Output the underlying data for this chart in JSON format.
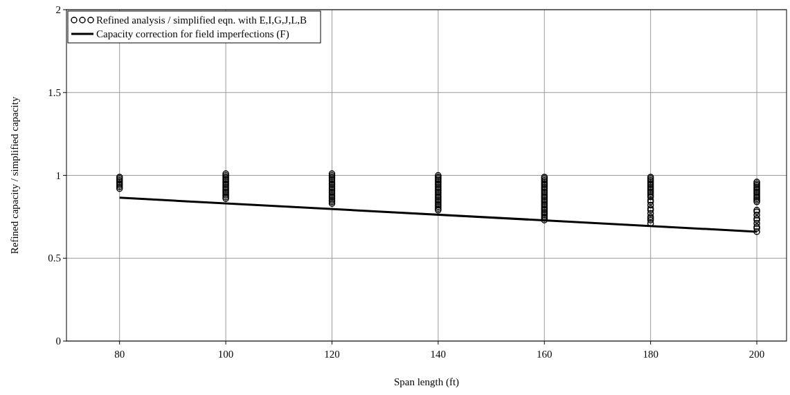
{
  "chart_data": {
    "type": "scatter",
    "xlabel": "Span length (ft)",
    "ylabel": "Refined capacity / simplified capacity",
    "xlim": [
      70,
      205.6
    ],
    "ylim": [
      0,
      2
    ],
    "xticks": [
      80,
      100,
      120,
      140,
      160,
      180,
      200
    ],
    "yticks": [
      0,
      0.5,
      1,
      1.5,
      2
    ],
    "grid": true,
    "legend": "top left",
    "marker": "circle",
    "series": [
      {
        "name": "Refined analysis / simplified eqn. with E,I,G,J,L,B",
        "color": "#000000",
        "x": [
          80,
          80,
          80,
          80,
          80,
          80,
          80,
          80,
          100,
          100,
          100,
          100,
          100,
          100,
          100,
          100,
          100,
          100,
          100,
          100,
          100,
          100,
          100,
          100,
          120,
          120,
          120,
          120,
          120,
          120,
          120,
          120,
          120,
          120,
          120,
          120,
          120,
          120,
          120,
          120,
          120,
          120,
          120,
          140,
          140,
          140,
          140,
          140,
          140,
          140,
          140,
          140,
          140,
          140,
          140,
          140,
          140,
          140,
          140,
          140,
          140,
          140,
          140,
          140,
          140,
          160,
          160,
          160,
          160,
          160,
          160,
          160,
          160,
          160,
          160,
          160,
          160,
          160,
          160,
          160,
          160,
          160,
          160,
          160,
          160,
          160,
          160,
          160,
          160,
          160,
          160,
          160,
          180,
          180,
          180,
          180,
          180,
          180,
          180,
          180,
          180,
          180,
          180,
          180,
          180,
          180,
          180,
          180,
          180,
          180,
          180,
          180,
          180,
          180,
          180,
          200,
          200,
          200,
          200,
          200,
          200,
          200,
          200,
          200,
          200,
          200,
          200,
          200,
          200,
          200,
          200,
          200,
          200,
          200,
          200,
          200,
          200
        ],
        "values": [
          0.92,
          0.93,
          0.94,
          0.95,
          0.96,
          0.97,
          0.98,
          0.99,
          0.86,
          0.87,
          0.88,
          0.89,
          0.9,
          0.91,
          0.92,
          0.93,
          0.94,
          0.95,
          0.96,
          0.97,
          0.98,
          0.99,
          1.0,
          1.01,
          0.83,
          0.84,
          0.85,
          0.86,
          0.87,
          0.88,
          0.89,
          0.9,
          0.91,
          0.92,
          0.93,
          0.94,
          0.95,
          0.96,
          0.97,
          0.98,
          0.99,
          1.0,
          1.01,
          0.79,
          0.8,
          0.81,
          0.82,
          0.83,
          0.84,
          0.85,
          0.86,
          0.87,
          0.88,
          0.89,
          0.9,
          0.91,
          0.92,
          0.93,
          0.94,
          0.95,
          0.96,
          0.97,
          0.98,
          0.99,
          1.0,
          0.73,
          0.74,
          0.75,
          0.76,
          0.77,
          0.78,
          0.79,
          0.8,
          0.81,
          0.82,
          0.83,
          0.84,
          0.85,
          0.86,
          0.87,
          0.88,
          0.89,
          0.9,
          0.91,
          0.92,
          0.93,
          0.94,
          0.95,
          0.96,
          0.97,
          0.98,
          0.99,
          0.71,
          0.73,
          0.74,
          0.75,
          0.77,
          0.79,
          0.8,
          0.82,
          0.84,
          0.85,
          0.87,
          0.88,
          0.89,
          0.9,
          0.91,
          0.92,
          0.93,
          0.94,
          0.95,
          0.96,
          0.97,
          0.98,
          0.99,
          0.66,
          0.68,
          0.69,
          0.71,
          0.73,
          0.74,
          0.76,
          0.78,
          0.79,
          0.84,
          0.85,
          0.86,
          0.87,
          0.88,
          0.89,
          0.9,
          0.91,
          0.92,
          0.93,
          0.94,
          0.95,
          0.96
        ]
      },
      {
        "name": "Capacity correction for field imperfections (F)",
        "type": "line",
        "color": "#000000",
        "line_style": "solid",
        "marker": "none",
        "x": [
          80,
          200
        ],
        "values": [
          0.865,
          0.66
        ]
      }
    ]
  }
}
